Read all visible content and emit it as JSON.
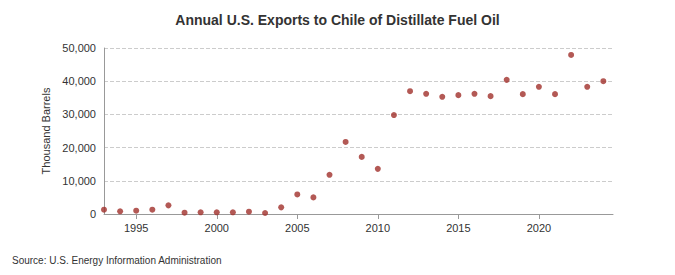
{
  "chart_data": {
    "type": "scatter",
    "title": "Annual U.S. Exports to Chile of Distillate Fuel Oil",
    "y_label": "Thousand Barrels",
    "annotations": [
      "Source: U.S. Energy Information Administration"
    ],
    "x": [
      1993,
      1994,
      1995,
      1996,
      1997,
      1998,
      1999,
      2000,
      2001,
      2002,
      2003,
      2004,
      2005,
      2006,
      2007,
      2008,
      2009,
      2010,
      2011,
      2012,
      2013,
      2014,
      2015,
      2016,
      2017,
      2018,
      2019,
      2020,
      2021,
      2022,
      2023,
      2024
    ],
    "values": [
      1300,
      800,
      1000,
      1300,
      2600,
      400,
      500,
      500,
      500,
      700,
      300,
      2000,
      5900,
      5000,
      11800,
      21700,
      17200,
      13600,
      29800,
      37000,
      36200,
      35300,
      35800,
      36200,
      35500,
      40400,
      36100,
      38300,
      36100,
      47900,
      38300,
      40000
    ],
    "color": "#a0302a",
    "marker": "circle",
    "xlim": [
      1993,
      2024.6
    ],
    "xticks": [
      1995,
      2000,
      2005,
      2010,
      2015,
      2020
    ],
    "ylim": [
      0,
      50000
    ],
    "yticks": [
      0,
      {
        "value": 10000,
        "label": "10,000"
      },
      {
        "value": 20000,
        "label": "20,000"
      },
      {
        "value": 30000,
        "label": "30,000"
      },
      {
        "value": 40000,
        "label": "40,000"
      },
      {
        "value": 50000,
        "label": "50,000"
      }
    ],
    "grid": true
  }
}
